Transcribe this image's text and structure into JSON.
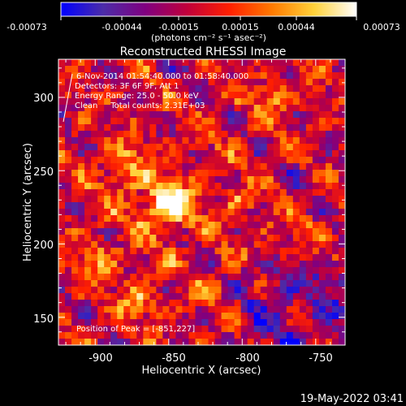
{
  "colorbar": {
    "ticks": [
      "-0.00073",
      "-0.00044",
      "-0.00015",
      "0.00015",
      "0.00044",
      "0.00073"
    ],
    "units": "(photons cm⁻² s⁻¹ asec⁻²)",
    "stops": [
      "#0000ff",
      "#4b2ca8",
      "#800080",
      "#c1003a",
      "#ff2000",
      "#ff7a00",
      "#ffd23a",
      "#ffffff"
    ]
  },
  "annotations": {
    "line1": "6-Nov-2014 01:54:40.000 to 01:58:40.000",
    "line2": "Detectors: 3F 6F 9F, Att 1",
    "line3": "Energy Range: 25.0 - 50.0 keV",
    "line4": "Clean     Total counts: 2.31E+03",
    "peak": "Position of Peak = [-851,227]"
  },
  "footer": {
    "timestamp": "19-May-2022 03:41"
  },
  "chart_data": {
    "type": "heatmap",
    "title": "Reconstructed RHESSI Image",
    "xlabel": "Heliocentric X (arcsec)",
    "ylabel": "Heliocentric Y (arcsec)",
    "xlim": [
      -925,
      -730
    ],
    "ylim": [
      131,
      326
    ],
    "xticks": [
      -900,
      -850,
      -800,
      -750
    ],
    "yticks": [
      150,
      200,
      250,
      300
    ],
    "zlim": [
      -0.00073,
      0.00073
    ],
    "peak": [
      -851,
      227
    ]
  }
}
